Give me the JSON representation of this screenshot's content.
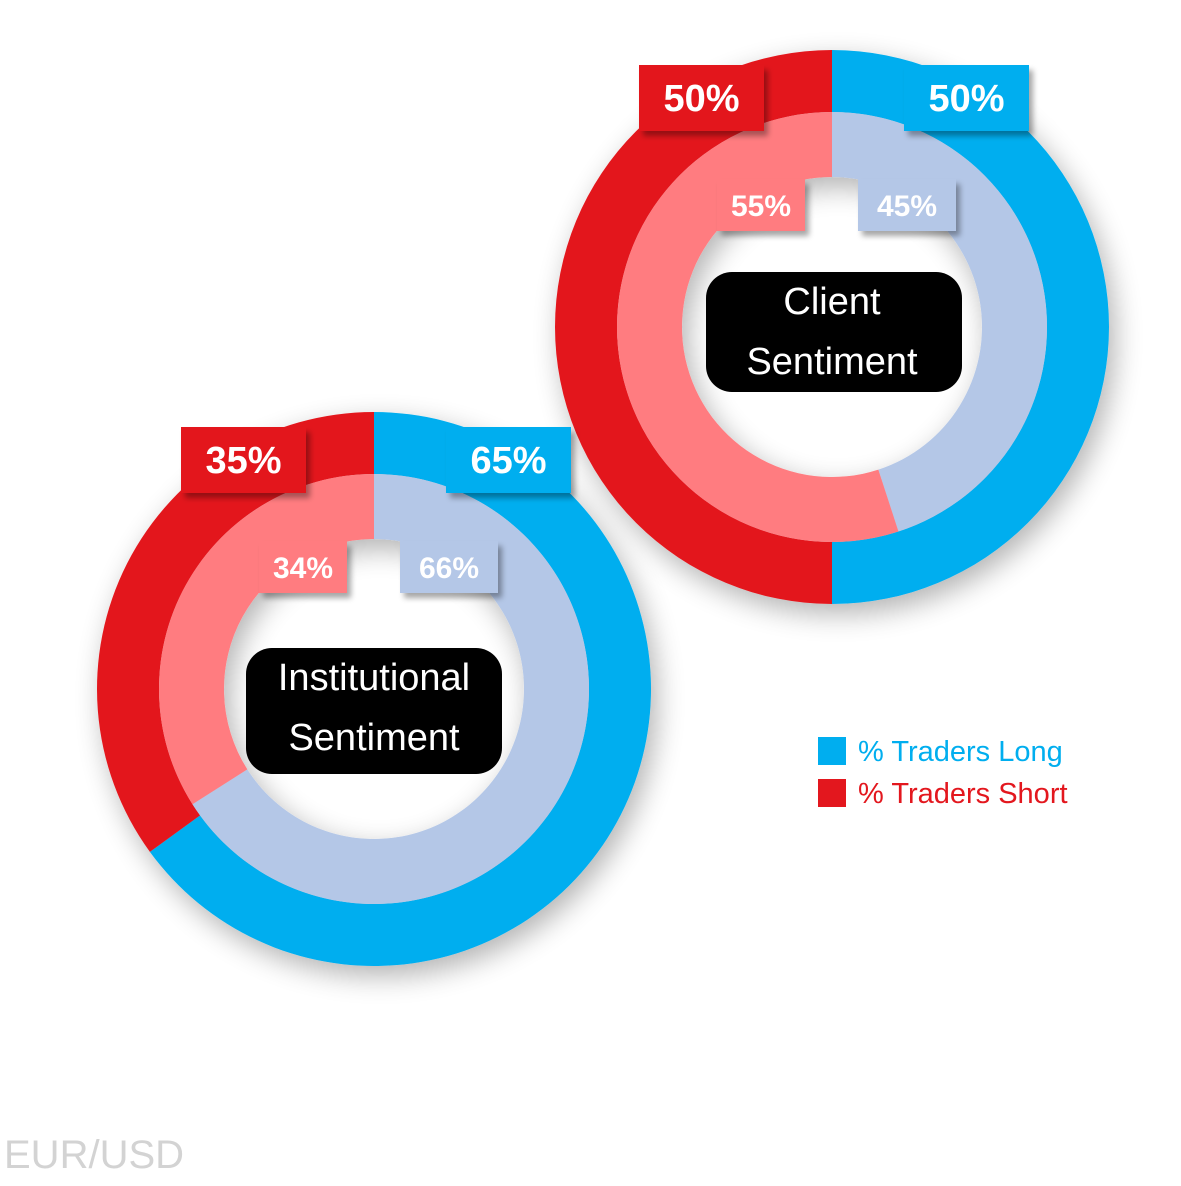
{
  "chart_data": {
    "type": "pie",
    "variant": "nested-donut",
    "pair": "EUR/USD",
    "series_names": [
      "% Traders Long",
      "% Traders Short"
    ],
    "colors": {
      "long_outer": "#00AEEF",
      "short_outer": "#E3171E",
      "long_inner": "#B4C7E7",
      "short_inner": "#FF7C80",
      "center_box": "#000000",
      "pair_label": "#D3D3D3"
    },
    "charts": [
      {
        "id": "client",
        "label_lines": [
          "Client",
          "Sentiment"
        ],
        "outer": {
          "long": 50,
          "short": 50,
          "long_label": "50%",
          "short_label": "50%"
        },
        "inner": {
          "long": 45,
          "short": 55,
          "long_label": "45%",
          "short_label": "55%"
        }
      },
      {
        "id": "institutional",
        "label_lines": [
          "Institutional",
          "Sentiment"
        ],
        "outer": {
          "long": 65,
          "short": 35,
          "long_label": "65%",
          "short_label": "35%"
        },
        "inner": {
          "long": 66,
          "short": 34,
          "long_label": "66%",
          "short_label": "34%"
        }
      }
    ],
    "legend": {
      "placement": "right",
      "items": [
        {
          "label": "% Traders Long",
          "color": "#00AEEF"
        },
        {
          "label": "% Traders Short",
          "color": "#E3171E"
        }
      ]
    }
  }
}
